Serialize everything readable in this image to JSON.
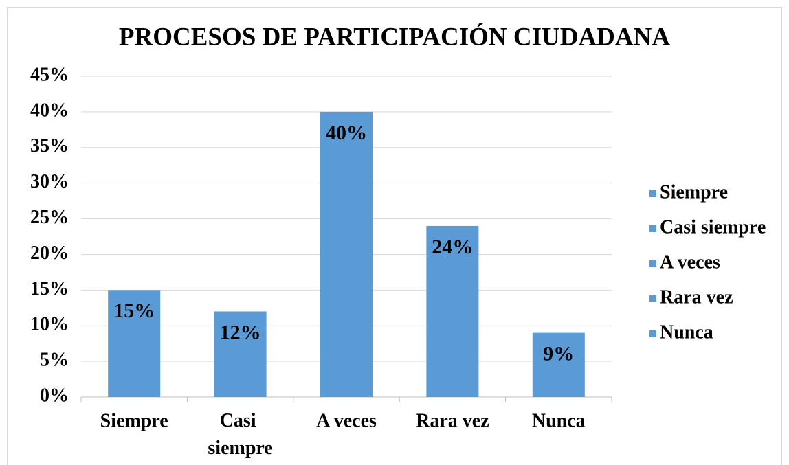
{
  "chart_data": {
    "type": "bar",
    "title": "PROCESOS DE PARTICIPACIÓN CIUDADANA",
    "categories": [
      "Siempre",
      "Casi siempre",
      "A veces",
      "Rara vez",
      "Nunca"
    ],
    "values": [
      15,
      12,
      40,
      24,
      9
    ],
    "value_labels": [
      "15%",
      "12%",
      "40%",
      "24%",
      "9%"
    ],
    "color": "#5b9bd5",
    "ylim": [
      0,
      45
    ],
    "yticks": [
      {
        "value": 0,
        "label": "0%"
      },
      {
        "value": 5,
        "label": "5%"
      },
      {
        "value": 10,
        "label": "10%"
      },
      {
        "value": 15,
        "label": "15%"
      },
      {
        "value": 20,
        "label": "20%"
      },
      {
        "value": 25,
        "label": "25%"
      },
      {
        "value": 30,
        "label": "30%"
      },
      {
        "value": 35,
        "label": "35%"
      },
      {
        "value": 40,
        "label": "40%"
      },
      {
        "value": 45,
        "label": "45%"
      }
    ],
    "grid": true,
    "legend": "right"
  }
}
